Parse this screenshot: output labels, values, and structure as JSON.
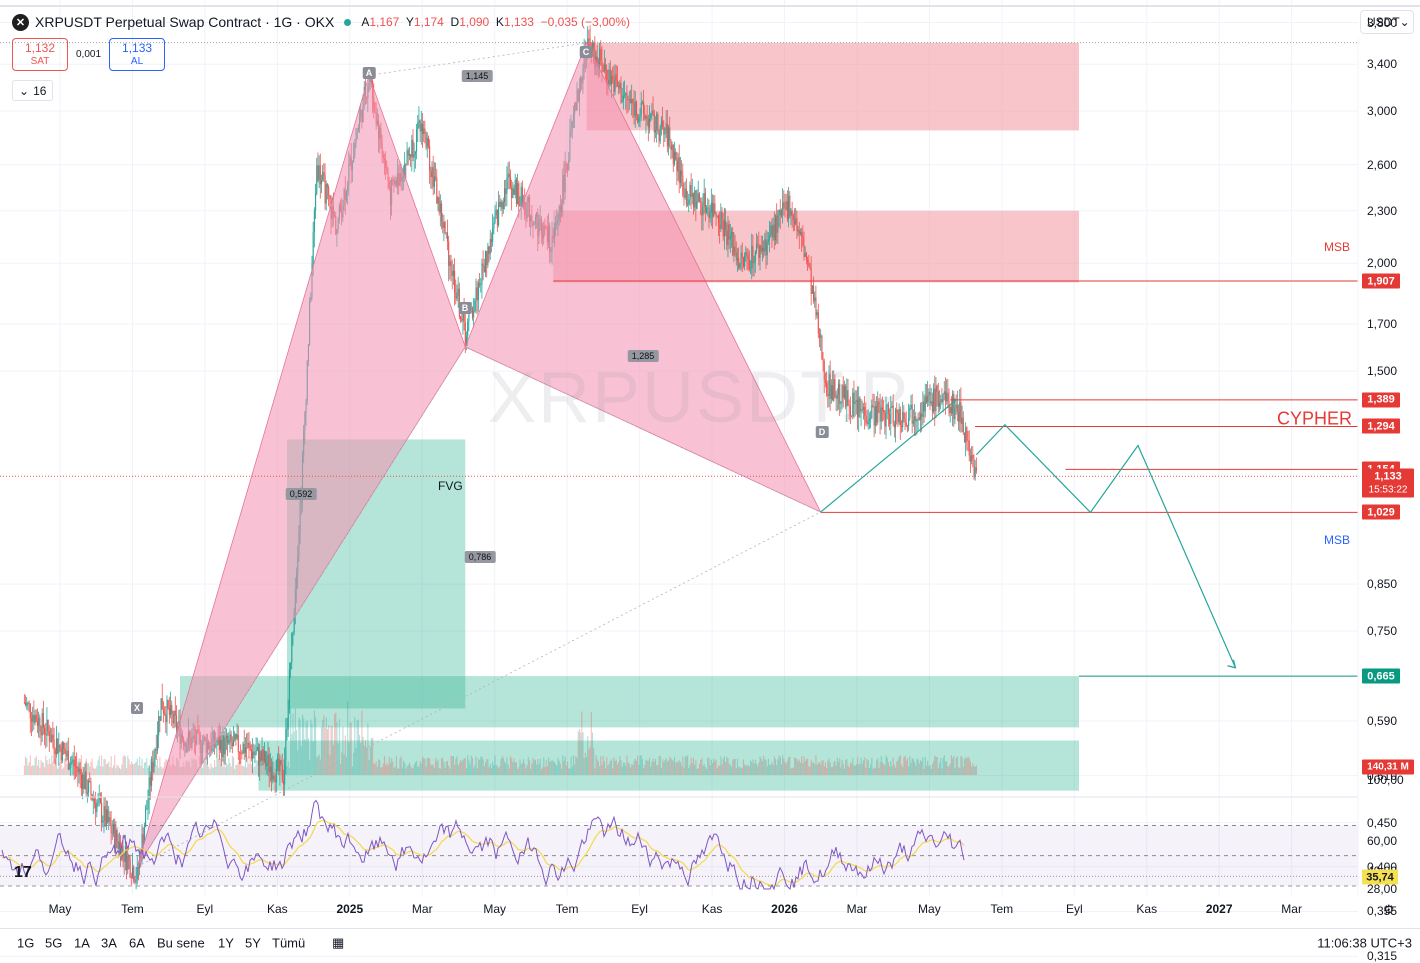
{
  "header": {
    "symbol_logo": "✕",
    "title": "XRPUSDT Perpetual Swap Contract · 1G · OKX",
    "open_label": "A",
    "open": "1,167",
    "high_label": "Y",
    "high": "1,174",
    "low_label": "D",
    "low": "1,090",
    "close_label": "K",
    "close": "1,133",
    "change": "−0,035 (−3,00%)"
  },
  "trade": {
    "sell_price": "1,132",
    "sell_label": "SAT",
    "spread": "0,001",
    "buy_price": "1,133",
    "buy_label": "AL"
  },
  "indicator_toggle": {
    "icon": "chevron-down-icon",
    "count": "16"
  },
  "currency": {
    "label": "USDT",
    "icon": "chevron-down-icon"
  },
  "watermark": "XRPUSDT.P",
  "price_axis_labels": [
    "3,800",
    "3,400",
    "3,000",
    "2,600",
    "2,300",
    "2,000",
    "1,700",
    "1,500",
    "0,850",
    "0,750",
    "0,590",
    "0,510",
    "0,450",
    "0,400",
    "0,355",
    "0,315"
  ],
  "price_tags": [
    {
      "value": "1,907",
      "color": "#e53935"
    },
    {
      "value": "1,389",
      "color": "#e53935"
    },
    {
      "value": "1,294",
      "color": "#e53935"
    },
    {
      "value": "1,154",
      "color": "#e53935"
    },
    {
      "value": "1,133",
      "color": "#e53935"
    },
    {
      "value": "15:53:22",
      "color": "#e53935"
    },
    {
      "value": "1,029",
      "color": "#e53935"
    },
    {
      "value": "0,665",
      "color": "#089981"
    },
    {
      "value": "140,31 M",
      "color": "#e53935"
    }
  ],
  "msb_top": "MSB",
  "msb_bottom": "MSB",
  "cypher_label": "CYPHER",
  "fvg_label": "FVG",
  "pattern_points": [
    "X",
    "A",
    "B",
    "C",
    "D"
  ],
  "ratio_labels": [
    "1,145",
    "1,285",
    "0,592",
    "0,786"
  ],
  "rsi_axis": [
    "100,00",
    "60,00",
    "40,00",
    "28,00"
  ],
  "rsi_value": "35,74",
  "time_axis": [
    {
      "label": "May",
      "bold": false
    },
    {
      "label": "Tem",
      "bold": false
    },
    {
      "label": "Eyl",
      "bold": false
    },
    {
      "label": "Kas",
      "bold": false
    },
    {
      "label": "2025",
      "bold": true
    },
    {
      "label": "Mar",
      "bold": false
    },
    {
      "label": "May",
      "bold": false
    },
    {
      "label": "Tem",
      "bold": false
    },
    {
      "label": "Eyl",
      "bold": false
    },
    {
      "label": "Kas",
      "bold": false
    },
    {
      "label": "2026",
      "bold": true
    },
    {
      "label": "Mar",
      "bold": false
    },
    {
      "label": "May",
      "bold": false
    },
    {
      "label": "Tem",
      "bold": false
    },
    {
      "label": "Eyl",
      "bold": false
    },
    {
      "label": "Kas",
      "bold": false
    },
    {
      "label": "2027",
      "bold": true
    },
    {
      "label": "Mar",
      "bold": false
    }
  ],
  "ranges": [
    "1G",
    "5G",
    "1A",
    "3A",
    "6A",
    "Bu sene",
    "1Y",
    "5Y",
    "Tümü"
  ],
  "clock": "11:06:38 UTC+3",
  "tv_logo": "17",
  "settings_icon": "gear-icon",
  "calendar_icon": "calendar-icon",
  "colors": {
    "up": "#26a69a",
    "down": "#ef5350",
    "accent": "#2962ff",
    "zone_red": "#f28b95",
    "zone_green": "#2bb38f",
    "harmonic": "#f48fb1",
    "projection": "#26a69a"
  },
  "chart_data": {
    "type": "candlestick",
    "title": "XRPUSDT Perpetual Swap Contract · 1G · OKX",
    "scale": "log",
    "ylim": [
      0.3,
      3.9
    ],
    "x_range": [
      "2024-04",
      "2027-04"
    ],
    "anchors": [
      {
        "date": "2024-04-01",
        "price": 0.62
      },
      {
        "date": "2024-05-15",
        "price": 0.52
      },
      {
        "date": "2024-07-05",
        "price": 0.39
      },
      {
        "date": "2024-07-25",
        "price": 0.62
      },
      {
        "date": "2024-08-15",
        "price": 0.56
      },
      {
        "date": "2024-10-05",
        "price": 0.55
      },
      {
        "date": "2024-11-05",
        "price": 0.51
      },
      {
        "date": "2024-11-20",
        "price": 1.1
      },
      {
        "date": "2024-12-03",
        "price": 2.6
      },
      {
        "date": "2024-12-20",
        "price": 2.2
      },
      {
        "date": "2025-01-16",
        "price": 3.3
      },
      {
        "date": "2025-02-03",
        "price": 2.4
      },
      {
        "date": "2025-03-02",
        "price": 2.9
      },
      {
        "date": "2025-04-07",
        "price": 1.65
      },
      {
        "date": "2025-05-12",
        "price": 2.5
      },
      {
        "date": "2025-06-20",
        "price": 2.1
      },
      {
        "date": "2025-07-18",
        "price": 3.6
      },
      {
        "date": "2025-08-20",
        "price": 3.1
      },
      {
        "date": "2025-09-25",
        "price": 2.8
      },
      {
        "date": "2025-10-10",
        "price": 2.4
      },
      {
        "date": "2025-11-05",
        "price": 2.3
      },
      {
        "date": "2025-11-25",
        "price": 2.0
      },
      {
        "date": "2025-12-15",
        "price": 2.1
      },
      {
        "date": "2026-01-05",
        "price": 2.35
      },
      {
        "date": "2026-01-20",
        "price": 2.0
      },
      {
        "date": "2026-02-05",
        "price": 1.45
      },
      {
        "date": "2026-03-05",
        "price": 1.35
      },
      {
        "date": "2026-04-10",
        "price": 1.33
      },
      {
        "date": "2026-05-10",
        "price": 1.4
      },
      {
        "date": "2026-05-28",
        "price": 1.35
      },
      {
        "date": "2026-06-11",
        "price": 1.133
      }
    ],
    "last_price": 1.133,
    "harmonic": {
      "name": "CYPHER",
      "X": 0.4,
      "A": 3.3,
      "B": 1.6,
      "C": 3.6,
      "D": 1.03,
      "ratios": {
        "XA-B": 0.592,
        "AB-C": 1.145,
        "BC-D": 1.285,
        "XC-D": 0.786
      }
    },
    "levels": {
      "msb_high": 1.907,
      "level_1": 1.389,
      "level_2": 1.294,
      "level_3": 1.154,
      "cypher_d": 1.029,
      "msb_low": 0.665
    },
    "zones": [
      {
        "type": "supply",
        "from": 2.85,
        "to": 3.6
      },
      {
        "type": "supply",
        "from": 1.9,
        "to": 2.3
      },
      {
        "type": "fvg",
        "from": 0.61,
        "to": 1.25
      },
      {
        "type": "demand",
        "from": 0.58,
        "to": 0.665
      },
      {
        "type": "demand",
        "from": 0.49,
        "to": 0.56
      }
    ],
    "projection_path": [
      1.133,
      1.3,
      1.029,
      1.23,
      0.68
    ],
    "volume_last": "140,31 M",
    "rsi": {
      "last": 35.74,
      "levels": [
        70,
        50,
        30
      ],
      "ylim": [
        25,
        100
      ]
    }
  }
}
